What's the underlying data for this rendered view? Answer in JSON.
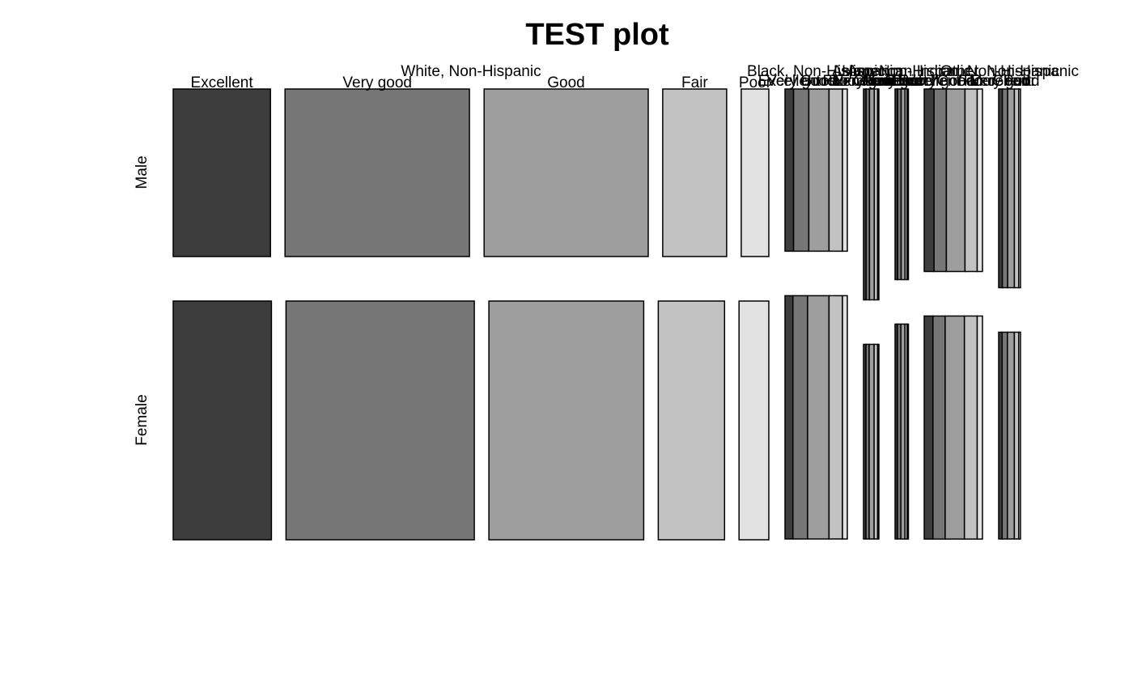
{
  "chart_data": {
    "type": "mosaic",
    "title": "TEST plot",
    "row_variable_levels": [
      "Male",
      "Female"
    ],
    "race_levels": [
      "White, Non-Hispanic",
      "Black, Non-Hispanic",
      "Hispanic",
      "Asian, Non-Hispanic",
      "American Indian, Non-Hispanic",
      "Other, Non-Hispanic"
    ],
    "health_levels": [
      "Excellent",
      "Very good",
      "Good",
      "Fair",
      "Poor"
    ],
    "fill_colors": [
      "#3d3d3d",
      "#777777",
      "#9e9e9e",
      "#c2c2c2",
      "#e2e2e2"
    ],
    "groups": [
      {
        "race": "White, Non-Hispanic",
        "sex_share": {
          "Male": 0.45,
          "Female": 0.55
        },
        "health_share": {
          "Male": [
            0.134,
            0.254,
            0.226,
            0.088,
            0.038
          ],
          "Female": [
            0.132,
            0.253,
            0.208,
            0.089,
            0.04
          ]
        }
      },
      {
        "race": "Black, Non-Hispanic",
        "sex_share": {
          "Male": 0.4,
          "Female": 0.6
        },
        "health_share": {
          "Male": [
            0.14,
            0.25,
            0.33,
            0.22,
            0.08
          ],
          "Female": [
            0.13,
            0.24,
            0.35,
            0.22,
            0.08
          ]
        }
      },
      {
        "race": "Hispanic",
        "sex_share": {
          "Male": 0.52,
          "Female": 0.48
        },
        "health_share": {
          "Male": [
            0.17,
            0.22,
            0.31,
            0.22,
            0.08
          ],
          "Female": [
            0.16,
            0.21,
            0.32,
            0.23,
            0.08
          ]
        }
      },
      {
        "race": "Asian, Non-Hispanic",
        "sex_share": {
          "Male": 0.47,
          "Female": 0.53
        },
        "health_share": {
          "Male": [
            0.2,
            0.27,
            0.3,
            0.17,
            0.06
          ],
          "Female": [
            0.18,
            0.27,
            0.31,
            0.18,
            0.06
          ]
        }
      },
      {
        "race": "American Indian, Non-Hispanic",
        "sex_share": {
          "Male": 0.45,
          "Female": 0.55
        },
        "health_share": {
          "Male": [
            0.17,
            0.21,
            0.32,
            0.21,
            0.09
          ],
          "Female": [
            0.15,
            0.21,
            0.33,
            0.22,
            0.09
          ]
        }
      },
      {
        "race": "Other, Non-Hispanic",
        "sex_share": {
          "Male": 0.49,
          "Female": 0.51
        },
        "health_share": {
          "Male": [
            0.17,
            0.24,
            0.31,
            0.2,
            0.08
          ],
          "Female": [
            0.16,
            0.24,
            0.32,
            0.2,
            0.08
          ]
        }
      }
    ],
    "grid": false,
    "legend": "none"
  }
}
